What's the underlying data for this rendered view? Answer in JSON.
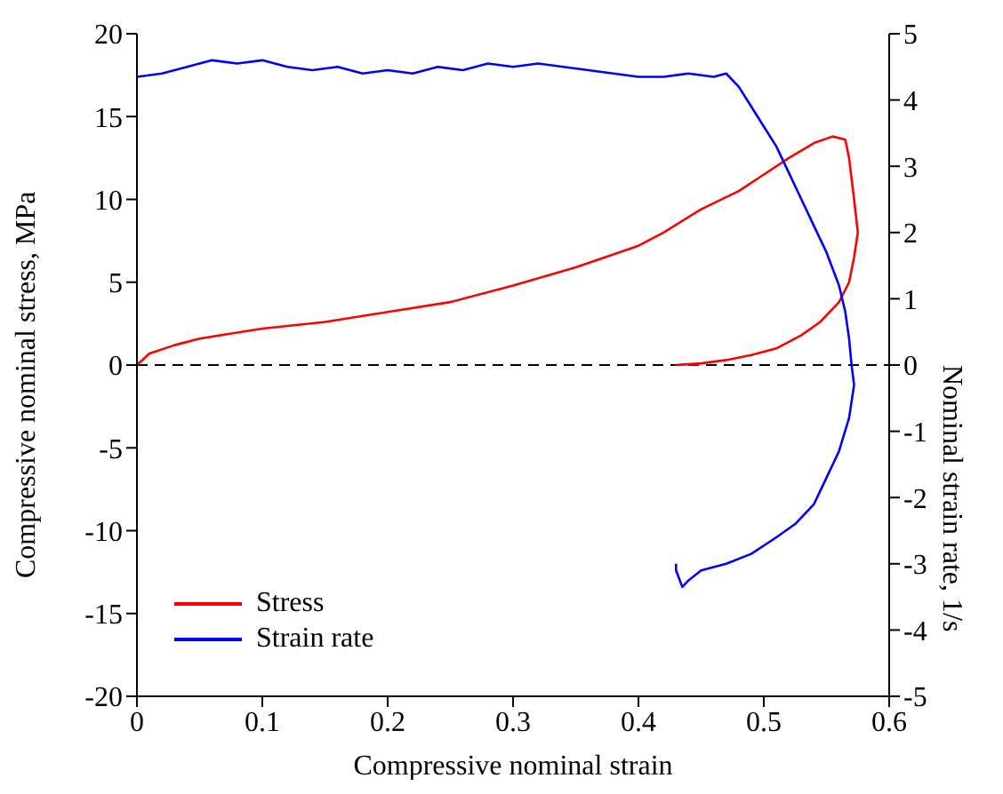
{
  "chart_data": {
    "type": "line",
    "xlabel": "Compressive nominal strain",
    "ylabel": "Compressive nominal stress, MPa",
    "y2label": "Nominal strain rate, 1/s",
    "xlim": [
      0,
      0.6
    ],
    "xticks": [
      0,
      0.1,
      0.2,
      0.3,
      0.4,
      0.5,
      0.6
    ],
    "ylim": [
      -20,
      20
    ],
    "yticks": [
      -20,
      -15,
      -10,
      -5,
      0,
      5,
      10,
      15,
      20
    ],
    "y2lim": [
      -5,
      5
    ],
    "y2ticks": [
      -5,
      -4,
      -3,
      -2,
      -1,
      0,
      1,
      2,
      3,
      4,
      5
    ],
    "legend": "bottom left",
    "ref_lines": [
      {
        "axis": "y",
        "value": 0,
        "color": "#000000",
        "line_style": "dashed"
      }
    ],
    "series": [
      {
        "name": "Stress",
        "color": "#ff0000",
        "x": [
          0,
          0.01,
          0.03,
          0.05,
          0.1,
          0.15,
          0.2,
          0.25,
          0.3,
          0.35,
          0.4,
          0.42,
          0.45,
          0.48,
          0.5,
          0.52,
          0.54,
          0.555,
          0.565,
          0.568,
          0.572,
          0.575,
          0.572,
          0.568,
          0.56,
          0.545,
          0.53,
          0.51,
          0.49,
          0.47,
          0.45,
          0.43
        ],
        "values": [
          0,
          0.7,
          1.2,
          1.6,
          2.2,
          2.6,
          3.2,
          3.8,
          4.8,
          5.9,
          7.2,
          8,
          9.4,
          10.5,
          11.5,
          12.5,
          13.4,
          13.8,
          13.6,
          12.5,
          10,
          8,
          6.5,
          5,
          3.8,
          2.6,
          1.8,
          1,
          0.6,
          0.3,
          0.1,
          0
        ]
      },
      {
        "name": "Strain rate",
        "color": "#0000ff",
        "axis": "y2",
        "x": [
          0,
          0.02,
          0.04,
          0.06,
          0.08,
          0.1,
          0.12,
          0.14,
          0.16,
          0.18,
          0.2,
          0.22,
          0.24,
          0.26,
          0.28,
          0.3,
          0.32,
          0.34,
          0.36,
          0.38,
          0.4,
          0.42,
          0.44,
          0.46,
          0.47,
          0.48,
          0.49,
          0.5,
          0.51,
          0.52,
          0.53,
          0.54,
          0.55,
          0.56,
          0.565,
          0.568,
          0.57,
          0.572,
          0.568,
          0.56,
          0.55,
          0.54,
          0.525,
          0.51,
          0.49,
          0.47,
          0.45,
          0.44,
          0.435,
          0.43,
          0.43
        ],
        "values": [
          4.35,
          4.4,
          4.5,
          4.6,
          4.55,
          4.6,
          4.5,
          4.45,
          4.5,
          4.4,
          4.45,
          4.4,
          4.5,
          4.45,
          4.55,
          4.5,
          4.55,
          4.5,
          4.45,
          4.4,
          4.35,
          4.35,
          4.4,
          4.35,
          4.4,
          4.2,
          3.9,
          3.6,
          3.3,
          2.9,
          2.5,
          2.1,
          1.7,
          1.2,
          0.8,
          0.4,
          0,
          -0.3,
          -0.8,
          -1.3,
          -1.7,
          -2.1,
          -2.4,
          -2.6,
          -2.85,
          -3,
          -3.1,
          -3.25,
          -3.35,
          -3.1,
          -3
        ]
      }
    ]
  }
}
